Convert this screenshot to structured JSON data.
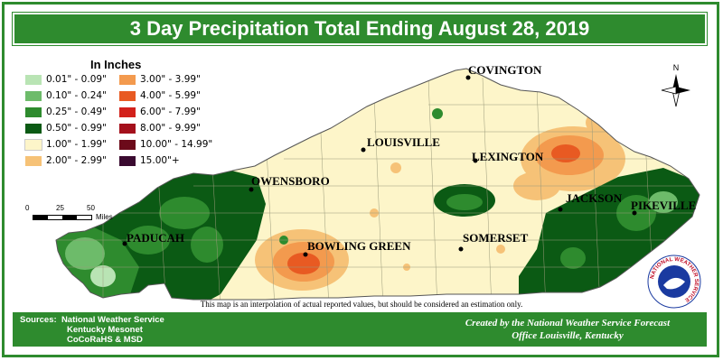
{
  "title": "3 Day Precipitation Total Ending August 28, 2019",
  "legend": {
    "heading": "In Inches",
    "items": [
      {
        "label": "0.01\" - 0.09\"",
        "color": "#b9e4b4"
      },
      {
        "label": "0.10\" - 0.24\"",
        "color": "#6dbb6a"
      },
      {
        "label": "0.25\" - 0.49\"",
        "color": "#2e8b2e"
      },
      {
        "label": "0.50\" - 0.99\"",
        "color": "#0b5a14"
      },
      {
        "label": "1.00\" - 1.99\"",
        "color": "#fdf5c9"
      },
      {
        "label": "2.00\" - 2.99\"",
        "color": "#f6c277"
      },
      {
        "label": "3.00\" - 3.99\"",
        "color": "#f39a4e"
      },
      {
        "label": "4.00\" - 5.99\"",
        "color": "#e85a22"
      },
      {
        "label": "6.00\" - 7.99\"",
        "color": "#d2211b"
      },
      {
        "label": "8.00\" - 9.99\"",
        "color": "#a4101c"
      },
      {
        "label": "10.00\" - 14.99\"",
        "color": "#6c0a1a"
      },
      {
        "label": "15.00\"+",
        "color": "#3a0a30"
      }
    ]
  },
  "scale": {
    "ticks": [
      "0",
      "25",
      "50"
    ],
    "unit": "Miles"
  },
  "north_label": "N",
  "cities": [
    {
      "name": "COVINGTON"
    },
    {
      "name": "LOUISVILLE"
    },
    {
      "name": "LEXINGTON"
    },
    {
      "name": "OWENSBORO"
    },
    {
      "name": "JACKSON"
    },
    {
      "name": "PIKEVILLE"
    },
    {
      "name": "PADUCAH"
    },
    {
      "name": "BOWLING GREEN"
    },
    {
      "name": "SOMERSET"
    }
  ],
  "disclaimer": "This map is an interpolation of actual reported values, but should be considered an estimation only.",
  "sources": {
    "label": "Sources:",
    "lines": [
      "National Weather Service",
      "Kentucky Mesonet",
      "CoCoRaHS & MSD"
    ]
  },
  "credit": {
    "line1": "Created by the National Weather Service Forecast",
    "line2": "Office Louisville, Kentucky"
  },
  "logo": {
    "text": "NATIONAL WEATHER SERVICE"
  }
}
